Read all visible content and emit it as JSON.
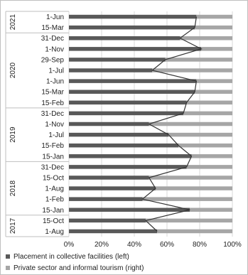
{
  "chart_data": {
    "type": "bar",
    "orientation": "horizontal",
    "stacked": true,
    "stack_mode": "percent",
    "categories": [
      "1-Jun",
      "15-Mar",
      "31-Dec",
      "1-Nov",
      "29-Sep",
      "1-Jul",
      "1-Jun",
      "15-Mar",
      "15-Feb",
      "31-Dec",
      "1-Nov",
      "1-Jul",
      "15-Feb",
      "15-Jan",
      "31-Dec",
      "15-Oct",
      "1-Aug",
      "1-Feb",
      "15-Jan",
      "15-Oct",
      "1-Aug"
    ],
    "year_groups": [
      {
        "label": "2021",
        "count": 2
      },
      {
        "label": "2020",
        "count": 7
      },
      {
        "label": "2019",
        "count": 5
      },
      {
        "label": "2018",
        "count": 5
      },
      {
        "label": "2017",
        "count": 2
      }
    ],
    "series": [
      {
        "name": "Placement in collective facilities (left)",
        "color": "#595959",
        "values": [
          78,
          77,
          68,
          81,
          59,
          51,
          78,
          77,
          72,
          70,
          49,
          61,
          67,
          75,
          72,
          49,
          53,
          45,
          74,
          47,
          54
        ]
      },
      {
        "name": "Private sector and informal tourism (right)",
        "color": "#a6a6a6",
        "values": [
          22,
          23,
          32,
          19,
          41,
          49,
          22,
          23,
          28,
          30,
          51,
          39,
          33,
          25,
          28,
          51,
          47,
          55,
          26,
          53,
          46
        ]
      }
    ],
    "line": {
      "color": "#333333",
      "values": [
        78,
        77,
        68,
        81,
        59,
        51,
        78,
        77,
        72,
        70,
        49,
        61,
        67,
        75,
        72,
        49,
        53,
        45,
        74,
        47,
        54
      ]
    },
    "x_ticks": [
      "0%",
      "20%",
      "40%",
      "60%",
      "80%",
      "100%"
    ],
    "xlim": [
      0,
      100
    ],
    "grid": true,
    "legend_position": "bottom"
  }
}
